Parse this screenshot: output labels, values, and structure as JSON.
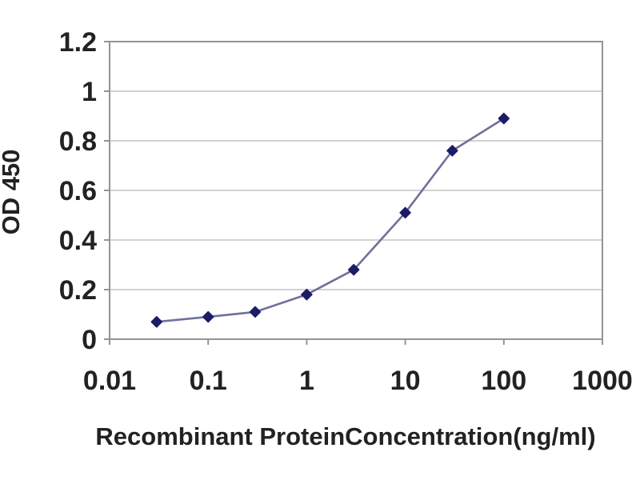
{
  "chart_data": {
    "type": "line",
    "title": "",
    "xlabel": "Recombinant ProteinConcentration(ng/ml)",
    "ylabel": "OD 450",
    "x_scale": "log",
    "y_scale": "linear",
    "xlim": [
      0.01,
      1000
    ],
    "ylim": [
      0,
      1.2
    ],
    "x_ticks": {
      "values": [
        0.01,
        0.1,
        1,
        10,
        100,
        1000
      ],
      "labels": [
        "0.01",
        "0.1",
        "1",
        "10",
        "100",
        "1000"
      ]
    },
    "y_ticks": {
      "values": [
        0,
        0.2,
        0.4,
        0.6,
        0.8,
        1,
        1.2
      ],
      "labels": [
        "0",
        "0.2",
        "0.4",
        "0.6",
        "0.8",
        "1",
        "1.2"
      ]
    },
    "grid": "horizontal-only",
    "legend": "none",
    "series": [
      {
        "marker": "diamond",
        "x": [
          0.03,
          0.1,
          0.3,
          1,
          3,
          10,
          30,
          100
        ],
        "y": [
          0.07,
          0.09,
          0.11,
          0.18,
          0.28,
          0.51,
          0.76,
          0.89
        ]
      }
    ],
    "colors": {
      "background": "#ffffff",
      "plot_background": "#ffffff",
      "gridline": "#c4c4c4",
      "frame": "#949494",
      "tick": "#949494",
      "text": "#222222",
      "line": "#70709c",
      "marker": "#1c1c66"
    }
  }
}
